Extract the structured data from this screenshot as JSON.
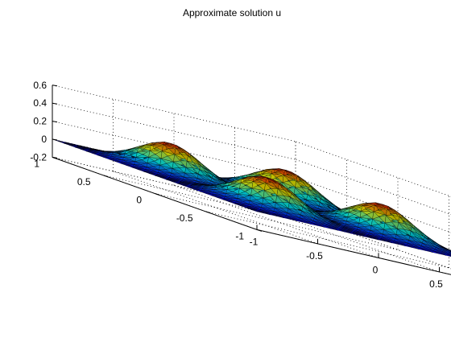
{
  "chart_data": {
    "type": "surface",
    "title": "Approximate solution u",
    "xlabel": "",
    "ylabel": "",
    "zlabel": "",
    "xlim": [
      -1,
      1
    ],
    "ylim": [
      -1,
      1
    ],
    "zlim": [
      -0.2,
      0.6
    ],
    "x_ticks": [
      "-1",
      "-0.5",
      "0",
      "0.5",
      "1"
    ],
    "y_ticks": [
      "-1",
      "-0.5",
      "0",
      "0.5",
      "1"
    ],
    "z_ticks": [
      "-0.2",
      "0",
      "0.2",
      "0.4",
      "0.6"
    ],
    "grid": true,
    "colormap": "jet",
    "mesh": "triangular",
    "boundary_value": 0,
    "peaks": [
      {
        "x": -0.5,
        "y": -0.5,
        "z": 0.4
      },
      {
        "x": 0.5,
        "y": -0.5,
        "z": 0.4
      },
      {
        "x": -0.5,
        "y": 0.5,
        "z": 0.4
      },
      {
        "x": 0.5,
        "y": 0.5,
        "z": 0.4
      }
    ],
    "saddle_min": 0.2
  }
}
